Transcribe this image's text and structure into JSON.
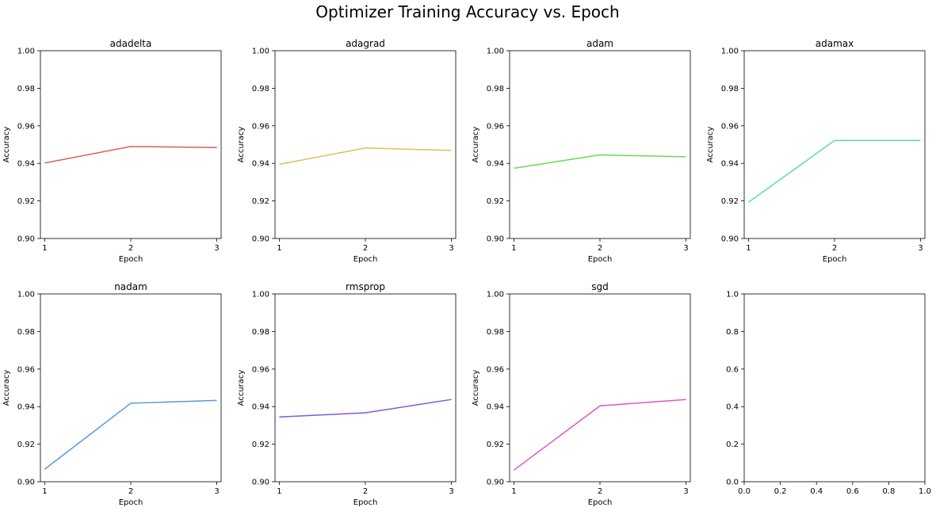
{
  "figure": {
    "title": "Optimizer Training Accuracy vs. Epoch"
  },
  "chart_data": [
    {
      "type": "line",
      "title": "adadelta",
      "xlabel": "Epoch",
      "ylabel": "Accuracy",
      "x": [
        1,
        2,
        3
      ],
      "xticks": [
        "1",
        "2",
        "3"
      ],
      "yticks": [
        "0.90",
        "0.92",
        "0.94",
        "0.96",
        "0.98",
        "1.00"
      ],
      "xlim": [
        0.95,
        3.05
      ],
      "ylim": [
        0.9,
        1.0
      ],
      "grid": false,
      "series": [
        {
          "values": [
            0.9402,
            0.949,
            0.9484
          ],
          "color": "#db5f57"
        }
      ]
    },
    {
      "type": "line",
      "title": "adagrad",
      "xlabel": "Epoch",
      "ylabel": "Accuracy",
      "x": [
        1,
        2,
        3
      ],
      "xticks": [
        "1",
        "2",
        "3"
      ],
      "yticks": [
        "0.90",
        "0.92",
        "0.94",
        "0.96",
        "0.98",
        "1.00"
      ],
      "xlim": [
        0.95,
        3.05
      ],
      "ylim": [
        0.9,
        1.0
      ],
      "grid": false,
      "series": [
        {
          "values": [
            0.9395,
            0.9482,
            0.9469
          ],
          "color": "#dbc257"
        }
      ]
    },
    {
      "type": "line",
      "title": "adam",
      "xlabel": "Epoch",
      "ylabel": "Accuracy",
      "x": [
        1,
        2,
        3
      ],
      "xticks": [
        "1",
        "2",
        "3"
      ],
      "yticks": [
        "0.90",
        "0.92",
        "0.94",
        "0.96",
        "0.98",
        "1.00"
      ],
      "xlim": [
        0.95,
        3.05
      ],
      "ylim": [
        0.9,
        1.0
      ],
      "grid": false,
      "series": [
        {
          "values": [
            0.9374,
            0.9445,
            0.9435
          ],
          "color": "#69db57"
        }
      ]
    },
    {
      "type": "line",
      "title": "adamax",
      "xlabel": "Epoch",
      "ylabel": "Accuracy",
      "x": [
        1,
        2,
        3
      ],
      "xticks": [
        "1",
        "2",
        "3"
      ],
      "yticks": [
        "0.90",
        "0.92",
        "0.94",
        "0.96",
        "0.98",
        "1.00"
      ],
      "xlim": [
        0.95,
        3.05
      ],
      "ylim": [
        0.9,
        1.0
      ],
      "grid": false,
      "series": [
        {
          "values": [
            0.9193,
            0.9522,
            0.9522
          ],
          "color": "#57dbb0"
        }
      ]
    },
    {
      "type": "line",
      "title": "nadam",
      "xlabel": "Epoch",
      "ylabel": "Accuracy",
      "x": [
        1,
        2,
        3
      ],
      "xticks": [
        "1",
        "2",
        "3"
      ],
      "yticks": [
        "0.90",
        "0.92",
        "0.94",
        "0.96",
        "0.98",
        "1.00"
      ],
      "xlim": [
        0.95,
        3.05
      ],
      "ylim": [
        0.9,
        1.0
      ],
      "grid": false,
      "series": [
        {
          "values": [
            0.9067,
            0.9418,
            0.9433
          ],
          "color": "#5798db"
        }
      ]
    },
    {
      "type": "line",
      "title": "rmsprop",
      "xlabel": "Epoch",
      "ylabel": "Accuracy",
      "x": [
        1,
        2,
        3
      ],
      "xticks": [
        "1",
        "2",
        "3"
      ],
      "yticks": [
        "0.90",
        "0.92",
        "0.94",
        "0.96",
        "0.98",
        "1.00"
      ],
      "xlim": [
        0.95,
        3.05
      ],
      "ylim": [
        0.9,
        1.0
      ],
      "grid": false,
      "series": [
        {
          "values": [
            0.9345,
            0.9367,
            0.9438
          ],
          "color": "#8557db"
        }
      ]
    },
    {
      "type": "line",
      "title": "sgd",
      "xlabel": "Epoch",
      "ylabel": "Accuracy",
      "x": [
        1,
        2,
        3
      ],
      "xticks": [
        "1",
        "2",
        "3"
      ],
      "yticks": [
        "0.90",
        "0.92",
        "0.94",
        "0.96",
        "0.98",
        "1.00"
      ],
      "xlim": [
        0.95,
        3.05
      ],
      "ylim": [
        0.9,
        1.0
      ],
      "grid": false,
      "series": [
        {
          "values": [
            0.9062,
            0.9404,
            0.9438
          ],
          "color": "#db57c8"
        }
      ]
    },
    {
      "type": "line",
      "title": "",
      "xlabel": "",
      "ylabel": "",
      "x": [],
      "xticks": [
        "0.0",
        "0.2",
        "0.4",
        "0.6",
        "0.8",
        "1.0"
      ],
      "yticks": [
        "0.0",
        "0.2",
        "0.4",
        "0.6",
        "0.8",
        "1.0"
      ],
      "xlim": [
        0,
        1
      ],
      "ylim": [
        0,
        1
      ],
      "grid": false,
      "series": []
    }
  ]
}
